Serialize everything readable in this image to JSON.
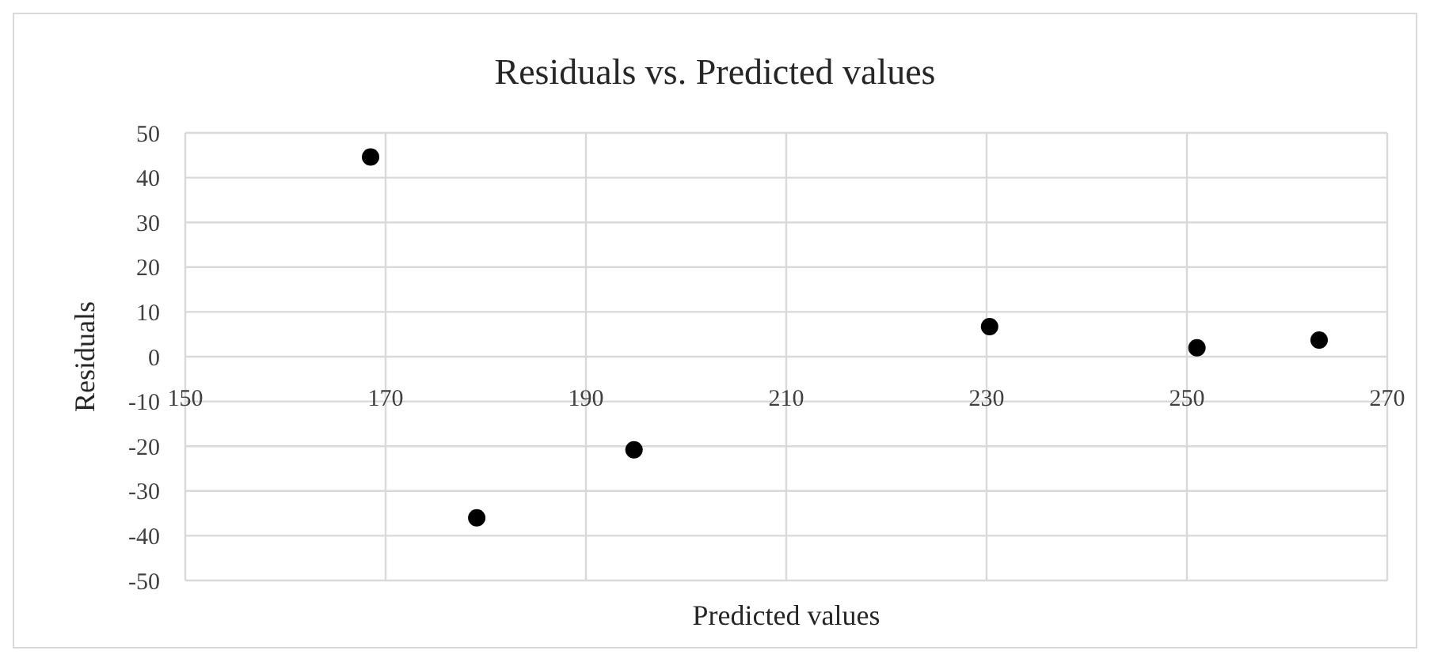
{
  "chart_data": {
    "type": "scatter",
    "title": "Residuals vs. Predicted values",
    "xlabel": "Predicted values",
    "ylabel": "Residuals",
    "x": [
      168.5,
      179.1,
      194.8,
      230.3,
      251.0,
      263.2
    ],
    "values": [
      44.6,
      -36.0,
      -20.8,
      6.7,
      2.0,
      3.7
    ],
    "color": "#000000",
    "marker": "circle",
    "xlim": [
      150,
      270
    ],
    "xticks": [
      150,
      170,
      190,
      210,
      230,
      250,
      270
    ],
    "ylim": [
      -50,
      50
    ],
    "yticks": [
      -50,
      -40,
      -30,
      -20,
      -10,
      0,
      10,
      20,
      30,
      40,
      50
    ],
    "grid": true
  }
}
